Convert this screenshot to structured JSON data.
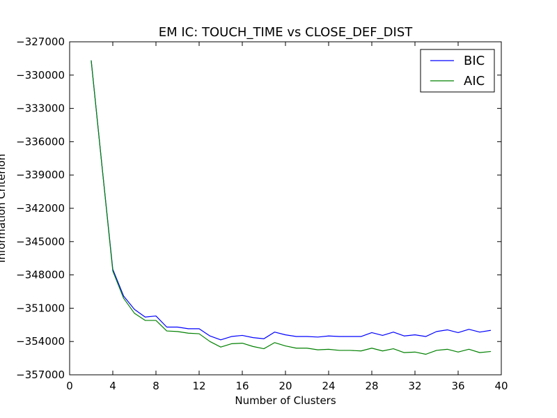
{
  "chart_data": {
    "type": "line",
    "title": "EM IC: TOUCH_TIME vs CLOSE_DEF_DIST",
    "xlabel": "Number of Clusters",
    "ylabel": "Information Criterion",
    "xlim": [
      0,
      40
    ],
    "ylim": [
      -357000,
      -327000
    ],
    "xticks": [
      0,
      4,
      8,
      12,
      16,
      20,
      24,
      28,
      32,
      36,
      40
    ],
    "yticks": [
      -357000,
      -354000,
      -351000,
      -348000,
      -345000,
      -342000,
      -339000,
      -336000,
      -333000,
      -330000,
      -327000
    ],
    "xtick_labels": [
      "0",
      "4",
      "8",
      "12",
      "16",
      "20",
      "24",
      "28",
      "32",
      "36",
      "40"
    ],
    "ytick_labels": [
      "−357000",
      "−354000",
      "−351000",
      "−348000",
      "−345000",
      "−342000",
      "−339000",
      "−336000",
      "−333000",
      "−330000",
      "−327000"
    ],
    "grid": false,
    "legend_position": "top-right",
    "x": [
      2,
      3,
      4,
      5,
      6,
      7,
      8,
      9,
      10,
      11,
      12,
      13,
      14,
      15,
      16,
      17,
      18,
      19,
      20,
      21,
      22,
      23,
      24,
      25,
      26,
      27,
      28,
      29,
      30,
      31,
      32,
      33,
      34,
      35,
      36,
      37,
      38,
      39
    ],
    "series": [
      {
        "name": "BIC",
        "color": "#0000ff",
        "values": [
          -328700,
          -338200,
          -347500,
          -349900,
          -351100,
          -351800,
          -351700,
          -352700,
          -352700,
          -352850,
          -352850,
          -353500,
          -353850,
          -353550,
          -353450,
          -353650,
          -353750,
          -353150,
          -353400,
          -353550,
          -353550,
          -353600,
          -353500,
          -353550,
          -353550,
          -353550,
          -353200,
          -353450,
          -353150,
          -353500,
          -353400,
          -353550,
          -353100,
          -352950,
          -353200,
          -352900,
          -353150,
          -353000
        ]
      },
      {
        "name": "AIC",
        "color": "#008000",
        "values": [
          -328700,
          -338200,
          -347650,
          -350100,
          -351450,
          -352100,
          -352100,
          -353050,
          -353100,
          -353250,
          -353300,
          -354000,
          -354500,
          -354200,
          -354150,
          -354450,
          -354650,
          -354100,
          -354400,
          -354600,
          -354600,
          -354750,
          -354700,
          -354800,
          -354800,
          -354850,
          -354600,
          -354850,
          -354650,
          -355000,
          -354950,
          -355150,
          -354800,
          -354700,
          -354950,
          -354700,
          -355000,
          -354900
        ]
      }
    ]
  }
}
